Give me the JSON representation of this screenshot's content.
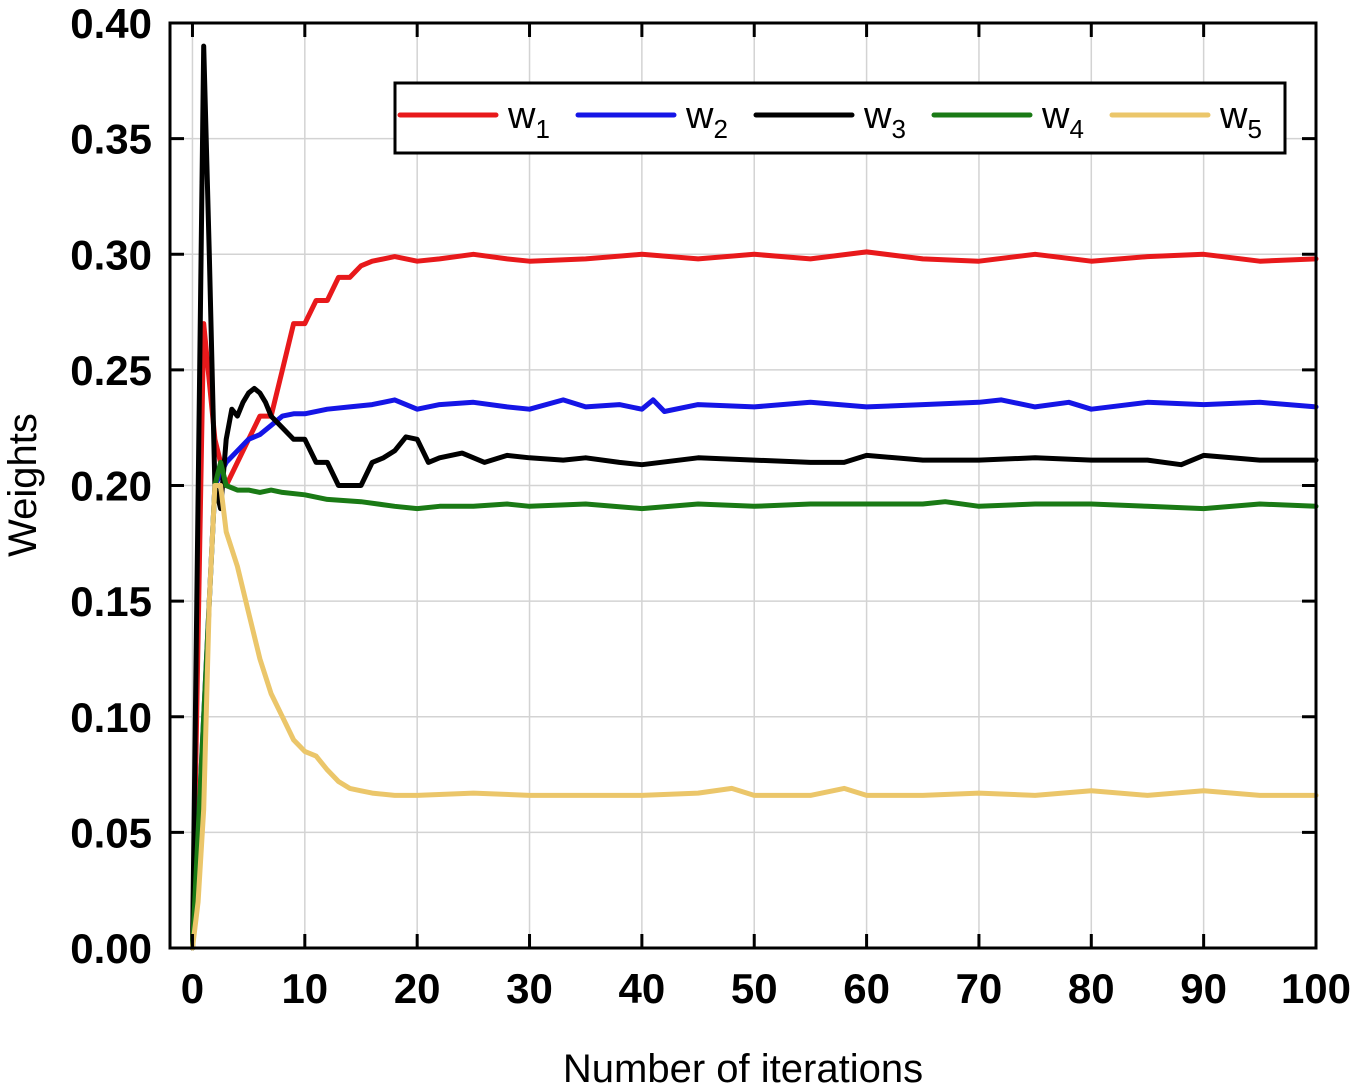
{
  "chart_data": {
    "type": "line",
    "title": "",
    "xlabel": "Number of iterations",
    "ylabel": "Weights",
    "xlim": [
      -2,
      100
    ],
    "ylim": [
      0,
      0.4
    ],
    "x_ticks": [
      0,
      10,
      20,
      30,
      40,
      50,
      60,
      70,
      80,
      90,
      100
    ],
    "x_tick_labels": [
      "0",
      "10",
      "20",
      "30",
      "40",
      "50",
      "60",
      "70",
      "80",
      "90",
      "100"
    ],
    "y_ticks": [
      0,
      0.05,
      0.1,
      0.15,
      0.2,
      0.25,
      0.3,
      0.35,
      0.4
    ],
    "y_tick_labels": [
      "0.00",
      "0.05",
      "0.10",
      "0.15",
      "0.20",
      "0.25",
      "0.30",
      "0.35",
      "0.40"
    ],
    "grid": true,
    "legend_position": "top-right",
    "series": [
      {
        "name": "w",
        "subscript": "1",
        "color": "#e8191b",
        "x": [
          0,
          1,
          2,
          3,
          4,
          5,
          6,
          7,
          8,
          9,
          10,
          11,
          12,
          13,
          14,
          15,
          16,
          18,
          20,
          22,
          25,
          28,
          30,
          35,
          40,
          45,
          50,
          55,
          60,
          65,
          70,
          75,
          80,
          85,
          90,
          95,
          100
        ],
        "values": [
          0.0,
          0.27,
          0.22,
          0.2,
          0.21,
          0.22,
          0.23,
          0.23,
          0.25,
          0.27,
          0.27,
          0.28,
          0.28,
          0.29,
          0.29,
          0.295,
          0.297,
          0.299,
          0.297,
          0.298,
          0.3,
          0.298,
          0.297,
          0.298,
          0.3,
          0.298,
          0.3,
          0.298,
          0.301,
          0.298,
          0.297,
          0.3,
          0.297,
          0.299,
          0.3,
          0.297,
          0.298
        ]
      },
      {
        "name": "w",
        "subscript": "2",
        "color": "#1515e6",
        "x": [
          0,
          1,
          2,
          3,
          4,
          5,
          6,
          7,
          8,
          9,
          10,
          12,
          14,
          16,
          18,
          20,
          22,
          25,
          28,
          30,
          33,
          35,
          38,
          40,
          41,
          42,
          45,
          50,
          55,
          60,
          65,
          70,
          72,
          75,
          78,
          80,
          85,
          90,
          95,
          100
        ],
        "values": [
          0.0,
          0.1,
          0.2,
          0.21,
          0.215,
          0.22,
          0.222,
          0.226,
          0.23,
          0.231,
          0.231,
          0.233,
          0.234,
          0.235,
          0.237,
          0.233,
          0.235,
          0.236,
          0.234,
          0.233,
          0.237,
          0.234,
          0.235,
          0.233,
          0.237,
          0.232,
          0.235,
          0.234,
          0.236,
          0.234,
          0.235,
          0.236,
          0.237,
          0.234,
          0.236,
          0.233,
          0.236,
          0.235,
          0.236,
          0.234
        ]
      },
      {
        "name": "w",
        "subscript": "3",
        "color": "#000000",
        "x": [
          0,
          1,
          1.5,
          2,
          2.5,
          3,
          3.5,
          4,
          4.5,
          5,
          5.5,
          6,
          6.5,
          7,
          8,
          9,
          10,
          11,
          12,
          13,
          14,
          15,
          16,
          17,
          18,
          19,
          20,
          21,
          22,
          24,
          26,
          28,
          30,
          33,
          35,
          38,
          40,
          45,
          50,
          55,
          58,
          60,
          65,
          70,
          75,
          80,
          85,
          88,
          90,
          95,
          100
        ],
        "values": [
          0.0,
          0.39,
          0.3,
          0.2,
          0.19,
          0.22,
          0.233,
          0.23,
          0.236,
          0.24,
          0.242,
          0.24,
          0.236,
          0.23,
          0.225,
          0.22,
          0.22,
          0.21,
          0.21,
          0.2,
          0.2,
          0.2,
          0.21,
          0.212,
          0.215,
          0.221,
          0.22,
          0.21,
          0.212,
          0.214,
          0.21,
          0.213,
          0.212,
          0.211,
          0.212,
          0.21,
          0.209,
          0.212,
          0.211,
          0.21,
          0.21,
          0.213,
          0.211,
          0.211,
          0.212,
          0.211,
          0.211,
          0.209,
          0.213,
          0.211,
          0.211
        ]
      },
      {
        "name": "w",
        "subscript": "4",
        "color": "#1a7a15",
        "x": [
          0,
          1,
          2,
          2.5,
          3,
          4,
          5,
          6,
          7,
          8,
          10,
          12,
          15,
          18,
          20,
          22,
          25,
          28,
          30,
          35,
          40,
          45,
          50,
          55,
          60,
          65,
          67,
          70,
          75,
          80,
          85,
          90,
          95,
          100
        ],
        "values": [
          0.0,
          0.1,
          0.2,
          0.21,
          0.2,
          0.198,
          0.198,
          0.197,
          0.198,
          0.197,
          0.196,
          0.194,
          0.193,
          0.191,
          0.19,
          0.191,
          0.191,
          0.192,
          0.191,
          0.192,
          0.19,
          0.192,
          0.191,
          0.192,
          0.192,
          0.192,
          0.193,
          0.191,
          0.192,
          0.192,
          0.191,
          0.19,
          0.192,
          0.191
        ]
      },
      {
        "name": "w",
        "subscript": "5",
        "color": "#ebc66a",
        "x": [
          0,
          0.5,
          1,
          1.5,
          2,
          2.5,
          3,
          4,
          5,
          6,
          7,
          8,
          9,
          10,
          11,
          12,
          13,
          14,
          15,
          16,
          18,
          20,
          25,
          30,
          35,
          40,
          45,
          48,
          50,
          55,
          58,
          60,
          65,
          70,
          75,
          80,
          85,
          90,
          95,
          100
        ],
        "values": [
          0.0,
          0.02,
          0.06,
          0.15,
          0.2,
          0.2,
          0.18,
          0.165,
          0.145,
          0.125,
          0.11,
          0.1,
          0.09,
          0.085,
          0.083,
          0.077,
          0.072,
          0.069,
          0.068,
          0.067,
          0.066,
          0.066,
          0.067,
          0.066,
          0.066,
          0.066,
          0.067,
          0.069,
          0.066,
          0.066,
          0.069,
          0.066,
          0.066,
          0.067,
          0.066,
          0.068,
          0.066,
          0.068,
          0.066,
          0.066
        ]
      }
    ]
  }
}
